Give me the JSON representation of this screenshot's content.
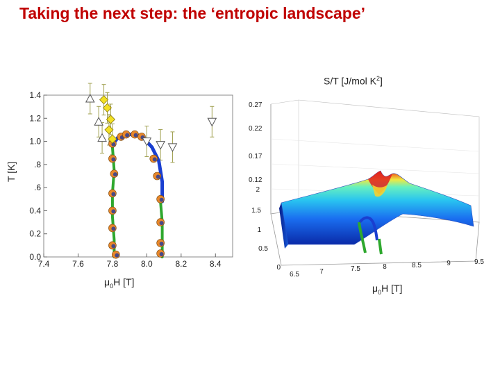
{
  "title": "Taking the next step: the ‘entropic landscape’",
  "colors": {
    "title": "#c00000",
    "phase_boundary": "#1a3fd0",
    "green_line": "#2ea82e",
    "marker_orange": "#e8872a",
    "marker_yellow": "#f2e024",
    "marker_blue": "#1f3a9e",
    "errorbar": "#a0a050"
  },
  "chart_data": [
    {
      "type": "scatter",
      "panel": "left",
      "xlabel": "μ0H [T]",
      "ylabel": "T [K]",
      "xlim": [
        7.4,
        8.5
      ],
      "ylim": [
        0.0,
        1.4
      ],
      "xticks": [
        "7.4",
        "7.6",
        "7.8",
        "8.0",
        "8.2",
        "8.4"
      ],
      "yticks": [
        "0.0",
        "0.2",
        "0.4",
        ".6",
        ".8",
        "1.0",
        "1.2",
        "1.4"
      ],
      "grid": false,
      "series": [
        {
          "marker": "circle-orange",
          "points": [
            [
              7.85,
              1.04
            ],
            [
              7.88,
              1.06
            ],
            [
              7.93,
              1.06
            ],
            [
              7.97,
              1.04
            ],
            [
              7.8,
              0.98
            ],
            [
              7.8,
              0.85
            ],
            [
              7.81,
              0.72
            ],
            [
              7.8,
              0.55
            ],
            [
              7.8,
              0.4
            ],
            [
              7.8,
              0.25
            ],
            [
              7.8,
              0.1
            ],
            [
              7.82,
              0.02
            ],
            [
              8.04,
              0.85
            ],
            [
              8.06,
              0.7
            ],
            [
              8.08,
              0.5
            ],
            [
              8.08,
              0.3
            ],
            [
              8.08,
              0.12
            ],
            [
              8.08,
              0.03
            ]
          ]
        },
        {
          "marker": "diamond-yellow",
          "points": [
            [
              7.75,
              1.36
            ],
            [
              7.77,
              1.29
            ],
            [
              7.79,
              1.19
            ],
            [
              7.78,
              1.1
            ],
            [
              7.8,
              1.02
            ]
          ]
        },
        {
          "marker": "triangle-up",
          "points": [
            [
              7.67,
              1.37
            ],
            [
              7.72,
              1.17
            ],
            [
              7.74,
              1.03
            ]
          ]
        },
        {
          "marker": "triangle-down",
          "points": [
            [
              8.0,
              1.0
            ],
            [
              8.08,
              0.97
            ],
            [
              8.15,
              0.95
            ],
            [
              8.38,
              1.17
            ]
          ]
        },
        {
          "marker": "line-blue",
          "points": [
            [
              7.8,
              0.97
            ],
            [
              7.83,
              1.03
            ],
            [
              7.88,
              1.06
            ],
            [
              7.93,
              1.06
            ],
            [
              7.98,
              1.03
            ],
            [
              8.03,
              0.95
            ],
            [
              8.07,
              0.83
            ],
            [
              8.09,
              0.65
            ],
            [
              8.09,
              0.48
            ]
          ]
        },
        {
          "marker": "line-green",
          "points": [
            [
              7.8,
              0.95
            ],
            [
              7.81,
              0.75
            ],
            [
              7.8,
              0.55
            ],
            [
              7.8,
              0.35
            ],
            [
              7.81,
              0.15
            ],
            [
              7.81,
              0.0
            ]
          ]
        },
        {
          "marker": "line-green-2",
          "points": [
            [
              8.08,
              0.48
            ],
            [
              8.09,
              0.3
            ],
            [
              8.09,
              0.12
            ],
            [
              8.09,
              0.0
            ]
          ]
        }
      ]
    },
    {
      "type": "surface",
      "panel": "right",
      "zlabel": "S/T [J/mol K²]",
      "zlabel_parts": {
        "main": "S/T [J/mol K",
        "sup": "2",
        "close": "]"
      },
      "xlabel": "μ0H [T]",
      "zticks": [
        "0.27",
        "0.22",
        "0.17",
        "0.12"
      ],
      "yticks": [
        "0",
        "0.5",
        "1",
        "1.5",
        "2"
      ],
      "xticks": [
        "6.5",
        "7",
        "7.5",
        "8",
        "8.5",
        "9",
        "9.5"
      ]
    }
  ],
  "labels": {
    "left_xlabel_mu": "μ",
    "left_xlabel_sub": "0",
    "left_xlabel_rest": "H [T]",
    "left_ylabel": "T [K]",
    "right_xlabel_mu": "μ",
    "right_xlabel_sub": "0",
    "right_xlabel_rest": "H [T]"
  }
}
